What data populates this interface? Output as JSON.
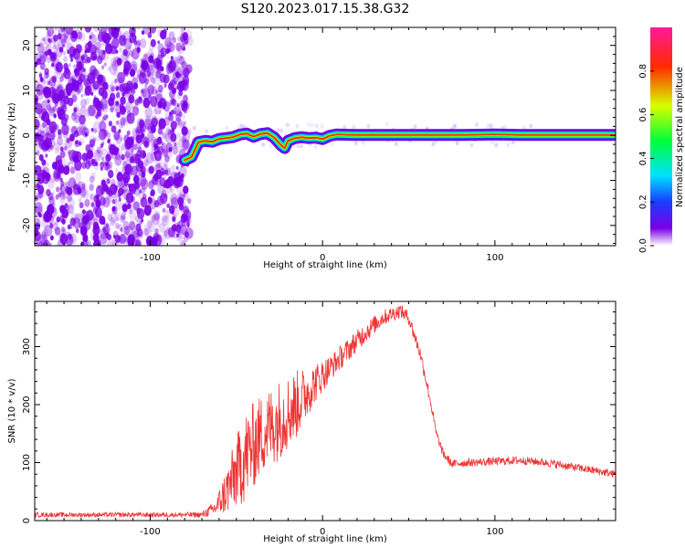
{
  "title": "S120.2023.017.15.38.G32",
  "chart_data": [
    {
      "type": "heatmap",
      "xlabel": "Height of straight line (km)",
      "ylabel": "Frequency (Hz)",
      "xlim": [
        -167,
        170
      ],
      "ylim": [
        -24.5,
        24
      ],
      "xticks": [
        -100,
        0,
        100
      ],
      "yticks": [
        -20,
        -10,
        0,
        10,
        20
      ],
      "colorbar": {
        "label": "Normalized spectral amplitude",
        "range": [
          0,
          1
        ],
        "ticks": [
          0.0,
          0.2,
          0.4,
          0.6,
          0.8
        ],
        "colormap": [
          "#ffffff",
          "#7a00e6",
          "#1a3cff",
          "#00e0ff",
          "#00ff3a",
          "#d8ff00",
          "#ff2a00",
          "#ff1a9a"
        ]
      },
      "noise_region": {
        "x_range": [
          -167,
          -77
        ],
        "description_color": "#7a00e6"
      },
      "ridge": {
        "x": [
          -80,
          -76,
          -72,
          -68,
          -64,
          -60,
          -56,
          -52,
          -48,
          -44,
          -40,
          -36,
          -32,
          -28,
          -24,
          -22,
          -20,
          -16,
          -12,
          -8,
          -4,
          0,
          4,
          8,
          20,
          40,
          60,
          80,
          100,
          115,
          120,
          140,
          170
        ],
        "y": [
          -5.5,
          -4.8,
          -1.5,
          -1.2,
          -1.4,
          -0.8,
          -0.6,
          -0.4,
          0.2,
          0.4,
          -0.3,
          0.3,
          0.5,
          -0.5,
          -2.2,
          -2.8,
          -1.2,
          -0.6,
          -0.4,
          -0.6,
          -0.5,
          -0.8,
          -0.1,
          0.2,
          0.1,
          0.1,
          0.1,
          0.1,
          0.2,
          0.1,
          0.1,
          0.1,
          0.1
        ]
      }
    },
    {
      "type": "line",
      "xlabel": "Height of straight line (km)",
      "ylabel": "SNR (10 * v/v)",
      "xlim": [
        -167,
        170
      ],
      "ylim": [
        0,
        378
      ],
      "xticks": [
        -100,
        0,
        100
      ],
      "yticks": [
        0,
        100,
        200,
        300
      ],
      "color": "#ee3333",
      "envelope": {
        "x": [
          -167,
          -150,
          -120,
          -90,
          -70,
          -62,
          -55,
          -45,
          -35,
          -25,
          -15,
          -5,
          5,
          15,
          25,
          35,
          45,
          50,
          57,
          62,
          66,
          70,
          75,
          85,
          100,
          115,
          130,
          150,
          170
        ],
        "y": [
          10,
          10,
          10,
          10,
          10,
          22,
          55,
          110,
          150,
          175,
          200,
          235,
          265,
          295,
          325,
          350,
          362,
          350,
          285,
          215,
          150,
          115,
          98,
          100,
          102,
          104,
          100,
          90,
          80
        ],
        "noise_amplitude": [
          4,
          4,
          4,
          4,
          5,
          14,
          45,
          80,
          70,
          70,
          60,
          35,
          22,
          20,
          18,
          14,
          12,
          12,
          12,
          10,
          8,
          8,
          7,
          7,
          7,
          7,
          7,
          7,
          7
        ]
      }
    }
  ]
}
